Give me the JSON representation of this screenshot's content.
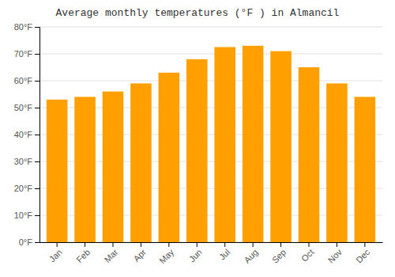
{
  "chart_data": {
    "type": "bar",
    "title": "Average monthly temperatures (°F ) in Almancil",
    "categories": [
      "Jan",
      "Feb",
      "Mar",
      "Apr",
      "May",
      "Jun",
      "Jul",
      "Aug",
      "Sep",
      "Oct",
      "Nov",
      "Dec"
    ],
    "values": [
      53,
      54,
      56,
      59,
      63,
      68,
      72.5,
      73,
      71,
      65,
      59,
      54
    ],
    "color": "#FFA000",
    "ylim": [
      0,
      80
    ],
    "yticks": [
      {
        "value": 0,
        "label": "0°F"
      },
      {
        "value": 10,
        "label": "10°F"
      },
      {
        "value": 20,
        "label": "20°F"
      },
      {
        "value": 30,
        "label": "30°F"
      },
      {
        "value": 40,
        "label": "40°F"
      },
      {
        "value": 50,
        "label": "50°F"
      },
      {
        "value": 60,
        "label": "60°F"
      },
      {
        "value": 70,
        "label": "70°F"
      },
      {
        "value": 80,
        "label": "80°F"
      }
    ],
    "grid": true
  }
}
